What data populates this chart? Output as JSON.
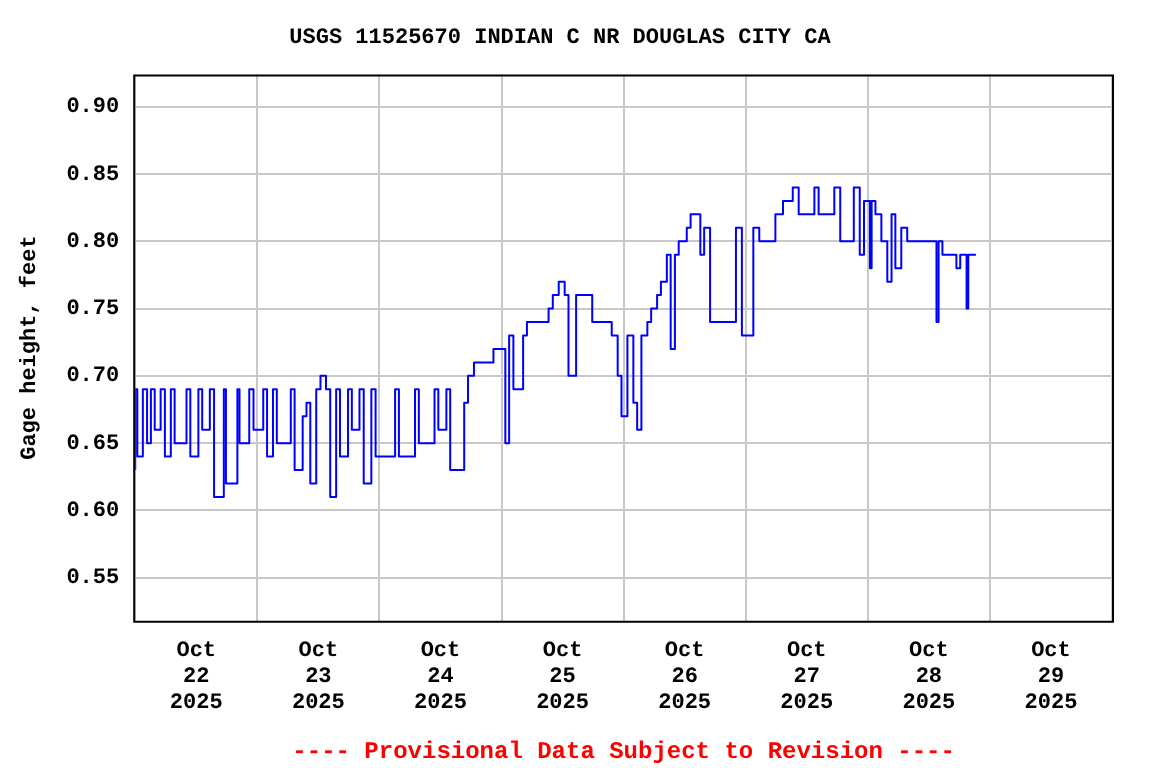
{
  "chart_data": {
    "type": "step",
    "title": "USGS 11525670 INDIAN C NR DOUGLAS CITY CA",
    "ylabel": "Gage height, feet",
    "annotations": [
      "---- Provisional Data Subject to Revision ----"
    ],
    "xlim": [
      "2025-10-22T00:00",
      "2025-10-30T00:00"
    ],
    "xticks": [
      {
        "value": "2025-10-22T00:00",
        "label": null
      },
      {
        "value": "2025-10-22T12:00",
        "label": "Oct 22 2025"
      },
      {
        "value": "2025-10-23T00:00",
        "label": null
      },
      {
        "value": "2025-10-23T12:00",
        "label": "Oct 23 2025"
      },
      {
        "value": "2025-10-24T00:00",
        "label": null
      },
      {
        "value": "2025-10-24T12:00",
        "label": "Oct 24 2025"
      },
      {
        "value": "2025-10-25T00:00",
        "label": null
      },
      {
        "value": "2025-10-25T12:00",
        "label": "Oct 25 2025"
      },
      {
        "value": "2025-10-26T00:00",
        "label": null
      },
      {
        "value": "2025-10-26T12:00",
        "label": "Oct 26 2025"
      },
      {
        "value": "2025-10-27T00:00",
        "label": null
      },
      {
        "value": "2025-10-27T12:00",
        "label": "Oct 27 2025"
      },
      {
        "value": "2025-10-28T00:00",
        "label": null
      },
      {
        "value": "2025-10-28T12:00",
        "label": "Oct 28 2025"
      },
      {
        "value": "2025-10-29T00:00",
        "label": null
      },
      {
        "value": "2025-10-29T12:00",
        "label": "Oct 29 2025"
      },
      {
        "value": "2025-10-30T00:00",
        "label": null
      }
    ],
    "ylim": [
      0.518,
      0.924
    ],
    "yticks": [
      {
        "value": 0.55,
        "label": "0.55"
      },
      {
        "value": 0.6,
        "label": "0.60"
      },
      {
        "value": 0.65,
        "label": "0.65"
      },
      {
        "value": 0.7,
        "label": "0.70"
      },
      {
        "value": 0.75,
        "label": "0.75"
      },
      {
        "value": 0.8,
        "label": "0.80"
      },
      {
        "value": 0.85,
        "label": "0.85"
      },
      {
        "value": 0.9,
        "label": "0.90"
      }
    ],
    "grid": true,
    "legend": false,
    "marker": "none",
    "line_style": "solid",
    "series": [
      {
        "color": "#0000ff",
        "x": [
          "2025-10-22T00:00",
          "2025-10-22T00:25",
          "2025-10-22T01:30",
          "2025-10-22T02:20",
          "2025-10-22T03:05",
          "2025-10-22T03:50",
          "2025-10-22T05:00",
          "2025-10-22T05:50",
          "2025-10-22T07:00",
          "2025-10-22T07:45",
          "2025-10-22T10:05",
          "2025-10-22T10:50",
          "2025-10-22T12:25",
          "2025-10-22T13:10",
          "2025-10-22T14:40",
          "2025-10-22T15:30",
          "2025-10-22T17:25",
          "2025-10-22T17:50",
          "2025-10-22T20:05",
          "2025-10-22T20:30",
          "2025-10-22T22:25",
          "2025-10-22T23:15",
          "2025-10-23T01:10",
          "2025-10-23T01:55",
          "2025-10-23T03:05",
          "2025-10-23T03:50",
          "2025-10-23T06:35",
          "2025-10-23T07:20",
          "2025-10-23T08:55",
          "2025-10-23T09:40",
          "2025-10-23T10:25",
          "2025-10-23T11:35",
          "2025-10-23T12:25",
          "2025-10-23T13:30",
          "2025-10-23T14:20",
          "2025-10-23T15:30",
          "2025-10-23T16:15",
          "2025-10-23T17:50",
          "2025-10-23T18:35",
          "2025-10-23T20:05",
          "2025-10-23T20:55",
          "2025-10-23T22:25",
          "2025-10-23T23:15",
          "2025-10-24T03:05",
          "2025-10-24T03:50",
          "2025-10-24T07:00",
          "2025-10-24T07:45",
          "2025-10-24T10:50",
          "2025-10-24T11:35",
          "2025-10-24T13:10",
          "2025-10-24T13:55",
          "2025-10-24T16:40",
          "2025-10-24T17:25",
          "2025-10-24T18:35",
          "2025-10-24T20:05",
          "2025-10-24T22:25",
          "2025-10-25T00:45",
          "2025-10-25T01:30",
          "2025-10-25T02:20",
          "2025-10-25T04:15",
          "2025-10-25T05:00",
          "2025-10-25T07:00",
          "2025-10-25T09:15",
          "2025-10-25T10:05",
          "2025-10-25T11:15",
          "2025-10-25T12:25",
          "2025-10-25T13:10",
          "2025-10-25T14:40",
          "2025-10-25T15:30",
          "2025-10-25T17:50",
          "2025-10-25T18:35",
          "2025-10-25T21:40",
          "2025-10-25T22:50",
          "2025-10-25T23:35",
          "2025-10-26T00:45",
          "2025-10-26T01:55",
          "2025-10-26T02:40",
          "2025-10-26T03:30",
          "2025-10-26T04:40",
          "2025-10-26T05:25",
          "2025-10-26T06:35",
          "2025-10-26T07:20",
          "2025-10-26T08:30",
          "2025-10-26T09:15",
          "2025-10-26T10:05",
          "2025-10-26T10:50",
          "2025-10-26T12:25",
          "2025-10-26T13:10",
          "2025-10-26T15:05",
          "2025-10-26T15:50",
          "2025-10-26T17:00",
          "2025-10-26T22:05",
          "2025-10-26T23:15",
          "2025-10-27T01:30",
          "2025-10-27T02:40",
          "2025-10-27T05:50",
          "2025-10-27T07:20",
          "2025-10-27T09:15",
          "2025-10-27T10:25",
          "2025-10-27T13:30",
          "2025-10-27T14:20",
          "2025-10-27T17:25",
          "2025-10-27T18:35",
          "2025-10-27T21:15",
          "2025-10-27T22:25",
          "2025-10-27T23:15",
          "2025-10-28T00:25",
          "2025-10-28T00:45",
          "2025-10-28T01:30",
          "2025-10-28T02:40",
          "2025-10-28T03:50",
          "2025-10-28T04:40",
          "2025-10-28T05:25",
          "2025-10-28T06:35",
          "2025-10-28T07:45",
          "2025-10-28T10:50",
          "2025-10-28T13:30",
          "2025-10-28T13:55",
          "2025-10-28T14:40",
          "2025-10-28T17:25",
          "2025-10-28T18:10",
          "2025-10-28T19:25",
          "2025-10-28T19:45",
          "2025-10-28T20:05",
          "2025-10-28T21:15"
        ],
        "values": [
          0.63,
          0.69,
          0.64,
          0.69,
          0.65,
          0.69,
          0.66,
          0.69,
          0.64,
          0.69,
          0.65,
          0.69,
          0.64,
          0.69,
          0.66,
          0.69,
          0.61,
          0.69,
          0.62,
          0.69,
          0.65,
          0.69,
          0.66,
          0.69,
          0.64,
          0.69,
          0.65,
          0.69,
          0.63,
          0.67,
          0.68,
          0.62,
          0.69,
          0.7,
          0.69,
          0.61,
          0.69,
          0.64,
          0.69,
          0.66,
          0.69,
          0.62,
          0.69,
          0.64,
          0.69,
          0.64,
          0.69,
          0.65,
          0.69,
          0.66,
          0.69,
          0.63,
          0.68,
          0.7,
          0.71,
          0.71,
          0.72,
          0.65,
          0.73,
          0.69,
          0.73,
          0.74,
          0.74,
          0.75,
          0.76,
          0.77,
          0.76,
          0.7,
          0.76,
          0.76,
          0.74,
          0.74,
          0.73,
          0.7,
          0.67,
          0.73,
          0.68,
          0.66,
          0.73,
          0.74,
          0.75,
          0.76,
          0.77,
          0.79,
          0.72,
          0.79,
          0.8,
          0.81,
          0.82,
          0.79,
          0.81,
          0.74,
          0.81,
          0.73,
          0.81,
          0.8,
          0.82,
          0.83,
          0.84,
          0.82,
          0.84,
          0.82,
          0.84,
          0.8,
          0.84,
          0.79,
          0.83,
          0.78,
          0.83,
          0.82,
          0.8,
          0.77,
          0.82,
          0.78,
          0.81,
          0.8,
          0.8,
          0.74,
          0.8,
          0.79,
          0.78,
          0.79,
          0.75,
          0.79,
          0.79
        ]
      }
    ]
  }
}
